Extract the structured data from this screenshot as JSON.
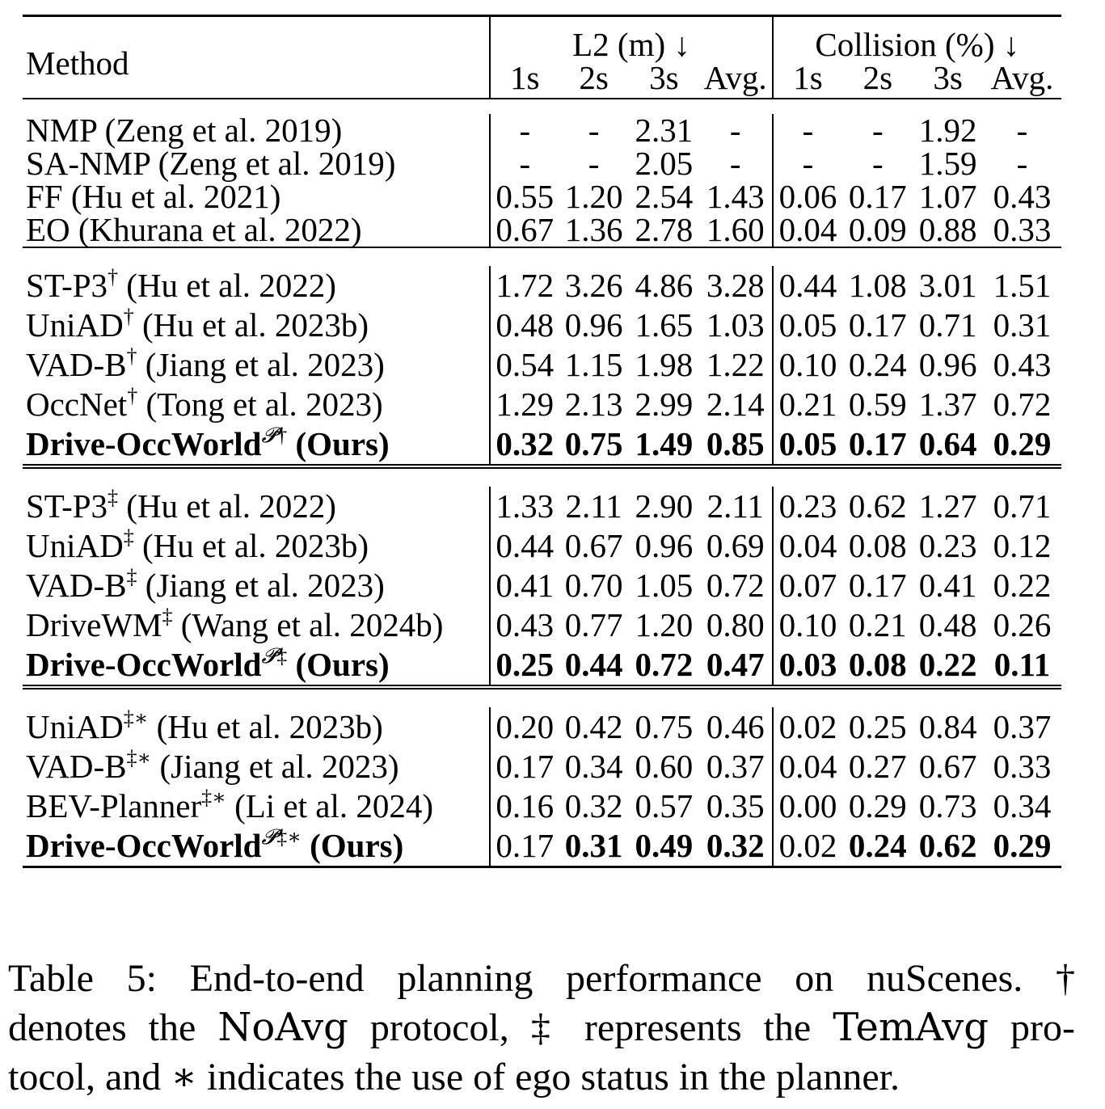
{
  "table": {
    "header": {
      "method": "Method",
      "l2_group": "L2 (m) ↓",
      "collision_group": "Collision (%) ↓",
      "l2_cols": [
        "1s",
        "2s",
        "3s",
        "Avg."
      ],
      "collision_cols": [
        "1s",
        "2s",
        "3s",
        "Avg."
      ]
    },
    "groups": [
      {
        "rows": [
          {
            "method": "NMP (Zeng et al. 2019)",
            "sup": "",
            "l2": [
              "-",
              "-",
              "2.31",
              "-"
            ],
            "col": [
              "-",
              "-",
              "1.92",
              "-"
            ],
            "bold_method": false,
            "bold": [
              false,
              false,
              false,
              false,
              false,
              false,
              false,
              false
            ]
          },
          {
            "method": "SA-NMP (Zeng et al. 2019)",
            "sup": "",
            "l2": [
              "-",
              "-",
              "2.05",
              "-"
            ],
            "col": [
              "-",
              "-",
              "1.59",
              "-"
            ],
            "bold_method": false,
            "bold": [
              false,
              false,
              false,
              false,
              false,
              false,
              false,
              false
            ]
          },
          {
            "method": "FF (Hu et al. 2021)",
            "sup": "",
            "l2": [
              "0.55",
              "1.20",
              "2.54",
              "1.43"
            ],
            "col": [
              "0.06",
              "0.17",
              "1.07",
              "0.43"
            ],
            "bold_method": false,
            "bold": [
              false,
              false,
              false,
              false,
              false,
              false,
              false,
              false
            ]
          },
          {
            "method": "EO (Khurana et al. 2022)",
            "sup": "",
            "l2": [
              "0.67",
              "1.36",
              "2.78",
              "1.60"
            ],
            "col": [
              "0.04",
              "0.09",
              "0.88",
              "0.33"
            ],
            "bold_method": false,
            "bold": [
              false,
              false,
              false,
              false,
              false,
              false,
              false,
              false
            ]
          }
        ]
      },
      {
        "rows": [
          {
            "method_pre": "ST-P3",
            "sup": "†",
            "method_post": " (Hu et al. 2022)",
            "l2": [
              "1.72",
              "3.26",
              "4.86",
              "3.28"
            ],
            "col": [
              "0.44",
              "1.08",
              "3.01",
              "1.51"
            ],
            "bold_method": false,
            "bold": [
              false,
              false,
              false,
              false,
              false,
              false,
              false,
              false
            ]
          },
          {
            "method_pre": "UniAD",
            "sup": "†",
            "method_post": " (Hu et al. 2023b)",
            "l2": [
              "0.48",
              "0.96",
              "1.65",
              "1.03"
            ],
            "col": [
              "0.05",
              "0.17",
              "0.71",
              "0.31"
            ],
            "bold_method": false,
            "bold": [
              false,
              false,
              false,
              false,
              false,
              false,
              false,
              false
            ]
          },
          {
            "method_pre": "VAD-B",
            "sup": "†",
            "method_post": " (Jiang et al. 2023)",
            "l2": [
              "0.54",
              "1.15",
              "1.98",
              "1.22"
            ],
            "col": [
              "0.10",
              "0.24",
              "0.96",
              "0.43"
            ],
            "bold_method": false,
            "bold": [
              false,
              false,
              false,
              false,
              false,
              false,
              false,
              false
            ]
          },
          {
            "method_pre": "OccNet",
            "sup": "†",
            "method_post": " (Tong et al. 2023)",
            "l2": [
              "1.29",
              "2.13",
              "2.99",
              "2.14"
            ],
            "col": [
              "0.21",
              "0.59",
              "1.37",
              "0.72"
            ],
            "bold_method": false,
            "bold": [
              false,
              false,
              false,
              false,
              false,
              false,
              false,
              false
            ]
          },
          {
            "method_pre": "Drive-OccWorld",
            "supP": "𝓟",
            "sup": "†",
            "method_post": " (Ours)",
            "l2": [
              "0.32",
              "0.75",
              "1.49",
              "0.85"
            ],
            "col": [
              "0.05",
              "0.17",
              "0.64",
              "0.29"
            ],
            "bold_method": true,
            "bold": [
              true,
              true,
              true,
              true,
              true,
              true,
              true,
              true
            ]
          }
        ]
      },
      {
        "rows": [
          {
            "method_pre": "ST-P3",
            "sup": "‡",
            "method_post": " (Hu et al. 2022)",
            "l2": [
              "1.33",
              "2.11",
              "2.90",
              "2.11"
            ],
            "col": [
              "0.23",
              "0.62",
              "1.27",
              "0.71"
            ],
            "bold_method": false,
            "bold": [
              false,
              false,
              false,
              false,
              false,
              false,
              false,
              false
            ]
          },
          {
            "method_pre": "UniAD",
            "sup": "‡",
            "method_post": " (Hu et al. 2023b)",
            "l2": [
              "0.44",
              "0.67",
              "0.96",
              "0.69"
            ],
            "col": [
              "0.04",
              "0.08",
              "0.23",
              "0.12"
            ],
            "bold_method": false,
            "bold": [
              false,
              false,
              false,
              false,
              false,
              false,
              false,
              false
            ]
          },
          {
            "method_pre": "VAD-B",
            "sup": "‡",
            "method_post": " (Jiang et al. 2023)",
            "l2": [
              "0.41",
              "0.70",
              "1.05",
              "0.72"
            ],
            "col": [
              "0.07",
              "0.17",
              "0.41",
              "0.22"
            ],
            "bold_method": false,
            "bold": [
              false,
              false,
              false,
              false,
              false,
              false,
              false,
              false
            ]
          },
          {
            "method_pre": "DriveWM",
            "sup": "‡",
            "method_post": " (Wang et al. 2024b)",
            "l2": [
              "0.43",
              "0.77",
              "1.20",
              "0.80"
            ],
            "col": [
              "0.10",
              "0.21",
              "0.48",
              "0.26"
            ],
            "bold_method": false,
            "bold": [
              false,
              false,
              false,
              false,
              false,
              false,
              false,
              false
            ]
          },
          {
            "method_pre": "Drive-OccWorld",
            "supP": "𝓟",
            "sup": "‡",
            "method_post": " (Ours)",
            "l2": [
              "0.25",
              "0.44",
              "0.72",
              "0.47"
            ],
            "col": [
              "0.03",
              "0.08",
              "0.22",
              "0.11"
            ],
            "bold_method": true,
            "bold": [
              true,
              true,
              true,
              true,
              true,
              true,
              true,
              true
            ]
          }
        ]
      },
      {
        "rows": [
          {
            "method_pre": "UniAD",
            "sup": "‡∗",
            "method_post": " (Hu et al. 2023b)",
            "l2": [
              "0.20",
              "0.42",
              "0.75",
              "0.46"
            ],
            "col": [
              "0.02",
              "0.25",
              "0.84",
              "0.37"
            ],
            "bold_method": false,
            "bold": [
              false,
              false,
              false,
              false,
              false,
              false,
              false,
              false
            ]
          },
          {
            "method_pre": "VAD-B",
            "sup": "‡∗",
            "method_post": " (Jiang et al. 2023)",
            "l2": [
              "0.17",
              "0.34",
              "0.60",
              "0.37"
            ],
            "col": [
              "0.04",
              "0.27",
              "0.67",
              "0.33"
            ],
            "bold_method": false,
            "bold": [
              false,
              false,
              false,
              false,
              false,
              false,
              false,
              false
            ]
          },
          {
            "method_pre": "BEV-Planner",
            "sup": "‡∗",
            "method_post": " (Li et al. 2024)",
            "l2": [
              "0.16",
              "0.32",
              "0.57",
              "0.35"
            ],
            "col": [
              "0.00",
              "0.29",
              "0.73",
              "0.34"
            ],
            "bold_method": false,
            "bold": [
              false,
              false,
              false,
              false,
              false,
              false,
              false,
              false
            ]
          },
          {
            "method_pre": "Drive-OccWorld",
            "supP": "𝓟",
            "sup": "‡∗",
            "method_post": " (Ours)",
            "l2": [
              "0.17",
              "0.31",
              "0.49",
              "0.32"
            ],
            "col": [
              "0.02",
              "0.24",
              "0.62",
              "0.29"
            ],
            "bold_method": true,
            "bold": [
              false,
              true,
              true,
              true,
              false,
              true,
              true,
              true
            ]
          }
        ]
      }
    ]
  },
  "caption": {
    "line1": "Table 5: End-to-end planning performance on nuScenes. †",
    "line2_a": "denotes the ",
    "line2_noavg": "NoAvg",
    "line2_b": " protocol, ‡ represents the ",
    "line2_temavg": "TemAvg",
    "line2_c": " pro-",
    "line3": "tocol, and ∗ indicates the use of ego status in the planner."
  }
}
